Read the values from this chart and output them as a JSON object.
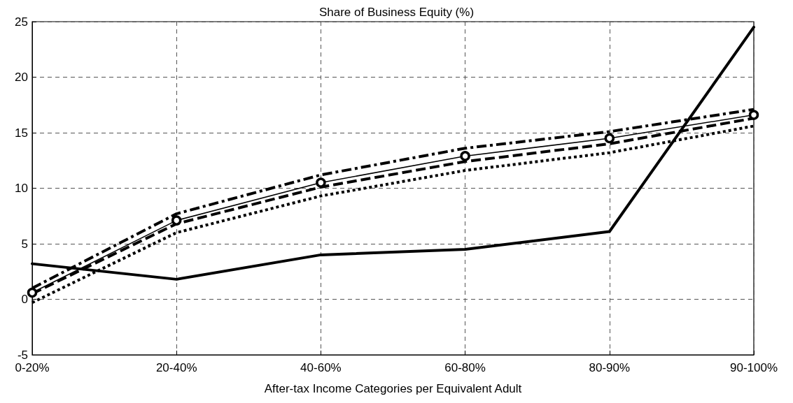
{
  "chart_data": {
    "type": "line",
    "title": "Share of Business Equity (%)",
    "xlabel": "After-tax Income Categories per Equivalent Adult",
    "categories": [
      "0-20%",
      "20-40%",
      "40-60%",
      "60-80%",
      "80-90%",
      "90-100%"
    ],
    "series": [
      {
        "color": "#000000",
        "line_style": "solid",
        "marker": "none",
        "values": [
          3.2,
          1.8,
          4.0,
          4.5,
          6.1,
          24.5
        ]
      },
      {
        "color": "#000000",
        "line_style": "dashdot",
        "marker": "none",
        "values": [
          1.0,
          7.7,
          11.2,
          13.6,
          15.1,
          17.1
        ]
      },
      {
        "color": "#000000",
        "line_style": "solid",
        "marker": "circle",
        "values": [
          0.6,
          7.1,
          10.5,
          12.9,
          14.5,
          16.6
        ]
      },
      {
        "color": "#000000",
        "line_style": "dashed",
        "marker": "none",
        "values": [
          0.5,
          6.8,
          10.1,
          12.4,
          14.0,
          16.3
        ]
      },
      {
        "color": "#000000",
        "line_style": "dotted",
        "marker": "none",
        "values": [
          -0.3,
          6.0,
          9.3,
          11.6,
          13.2,
          15.6
        ]
      }
    ],
    "ylim": [
      -5,
      25
    ],
    "yticks": [
      -5,
      0,
      5,
      10,
      15,
      20,
      25
    ],
    "grid": true
  }
}
